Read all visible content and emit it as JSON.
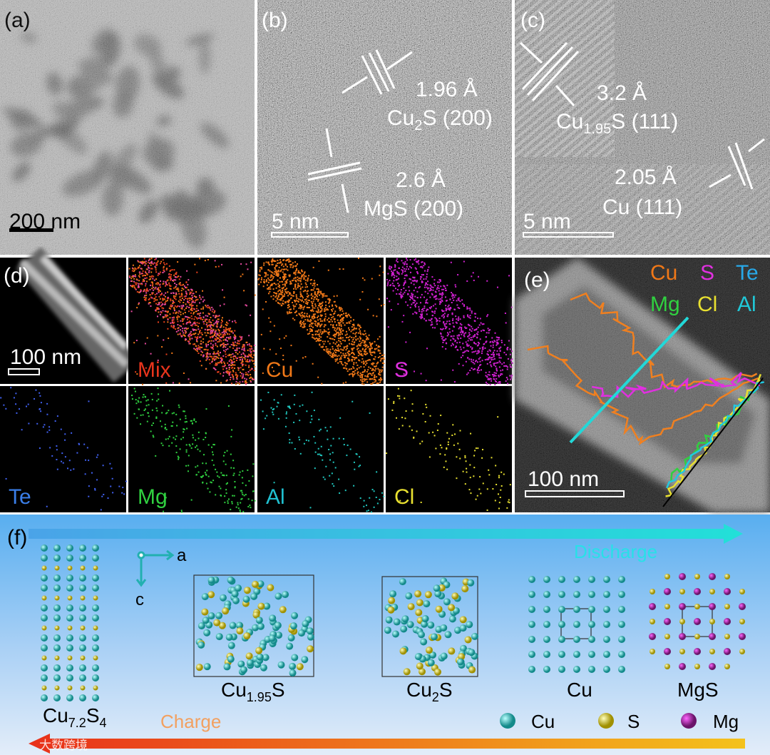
{
  "panels": {
    "a": {
      "label": "(a)",
      "scale_bar": "200 nm"
    },
    "b": {
      "label": "(b)",
      "scale_bar": "5 nm",
      "annotations": [
        {
          "spacing": "1.96 Å",
          "phase": [
            "Cu",
            "2",
            "S (200)"
          ]
        },
        {
          "spacing": "2.6 Å",
          "phase": [
            "MgS (200)"
          ]
        }
      ]
    },
    "c": {
      "label": "(c)",
      "scale_bar": "5 nm",
      "annotations": [
        {
          "spacing": "3.2 Å",
          "phase": [
            "Cu",
            "1.95",
            "S (111)"
          ]
        },
        {
          "spacing": "2.05 Å",
          "phase": [
            "Cu (111)"
          ]
        }
      ]
    },
    "d": {
      "label": "(d)",
      "scale_bar": "100 nm",
      "maps": [
        "Mix",
        "Cu",
        "S",
        "Te",
        "Mg",
        "Al",
        "Cl"
      ]
    },
    "e": {
      "label": "(e)",
      "scale_bar": "100 nm",
      "legend": [
        "Cu",
        "S",
        "Te",
        "Mg",
        "Cl",
        "Al"
      ]
    },
    "f": {
      "label": "(f)",
      "axes": [
        "a",
        "c"
      ],
      "discharge": "Discharge",
      "charge": "Charge",
      "structures": [
        [
          "Cu",
          "7.2",
          "S",
          "4"
        ],
        [
          "Cu",
          "1.95",
          "S"
        ],
        [
          "Cu",
          "2",
          "S"
        ],
        [
          "Cu"
        ],
        [
          "MgS"
        ]
      ],
      "legend": [
        "Cu",
        "S",
        "Mg"
      ]
    }
  },
  "watermark": "大数跨境"
}
